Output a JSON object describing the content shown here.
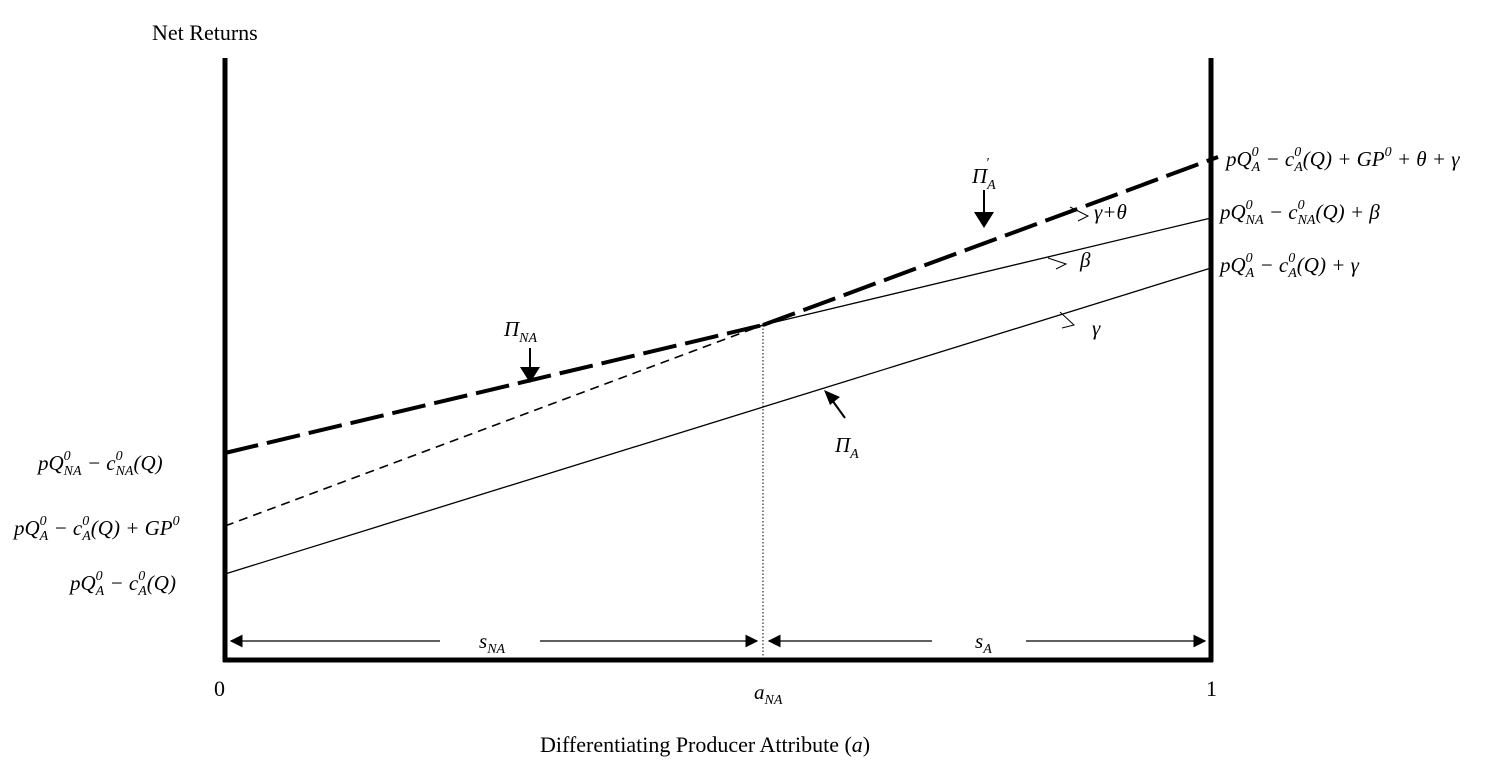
{
  "y_axis_label": "Net Returns",
  "x_axis_label_prefix": "Differentiating Producer Attribute (",
  "x_axis_label_var": "a",
  "x_axis_label_suffix": ")",
  "x_ticks": {
    "zero": "0",
    "one": "1",
    "a_base": "a",
    "a_sub": "NA"
  },
  "spans": {
    "s_na_base": "s",
    "s_na_sub": "NA",
    "s_a_base": "s",
    "s_a_sub": "A"
  },
  "curve_labels": {
    "pi_na_base": "Π",
    "pi_na_sub": "NA",
    "pi_a_prime_base": "Π",
    "pi_a_prime_sub": "A",
    "pi_a_prime_sup": "′",
    "pi_a_base": "Π",
    "pi_a_sub": "A"
  },
  "slopes": {
    "gamma_theta": "γ+θ",
    "beta": "β",
    "gamma": "γ"
  },
  "left_labels": {
    "pq_na": {
      "p": "pQ",
      "sup": "0",
      "sub": "NA",
      "minus": " − c",
      "csup": "0",
      "csub": "NA",
      "tail": "(Q)"
    },
    "pq_a_gp": {
      "p": "pQ",
      "sup": "0",
      "sub": "A",
      "minus": " − c",
      "csup": "0",
      "csub": "A",
      "tail": "(Q) + GP",
      "gpsup": "0"
    },
    "pq_a": {
      "p": "pQ",
      "sup": "0",
      "sub": "A",
      "minus": " − c",
      "csup": "0",
      "csub": "A",
      "tail": "(Q)"
    }
  },
  "right_labels": {
    "top": {
      "p": "pQ",
      "sup": "0",
      "sub": "A",
      "minus": " − c",
      "csup": "0",
      "csub": "A",
      "tail": "(Q) + GP",
      "gpsup": "0",
      "end": " + θ + γ"
    },
    "mid": {
      "p": "pQ",
      "sup": "0",
      "sub": "NA",
      "minus": " − c",
      "csup": "0",
      "csub": "NA",
      "tail": "(Q) + β"
    },
    "low": {
      "p": "pQ",
      "sup": "0",
      "sub": "A",
      "minus": " − c",
      "csup": "0",
      "csub": "A",
      "tail": "(Q) + γ"
    }
  }
}
